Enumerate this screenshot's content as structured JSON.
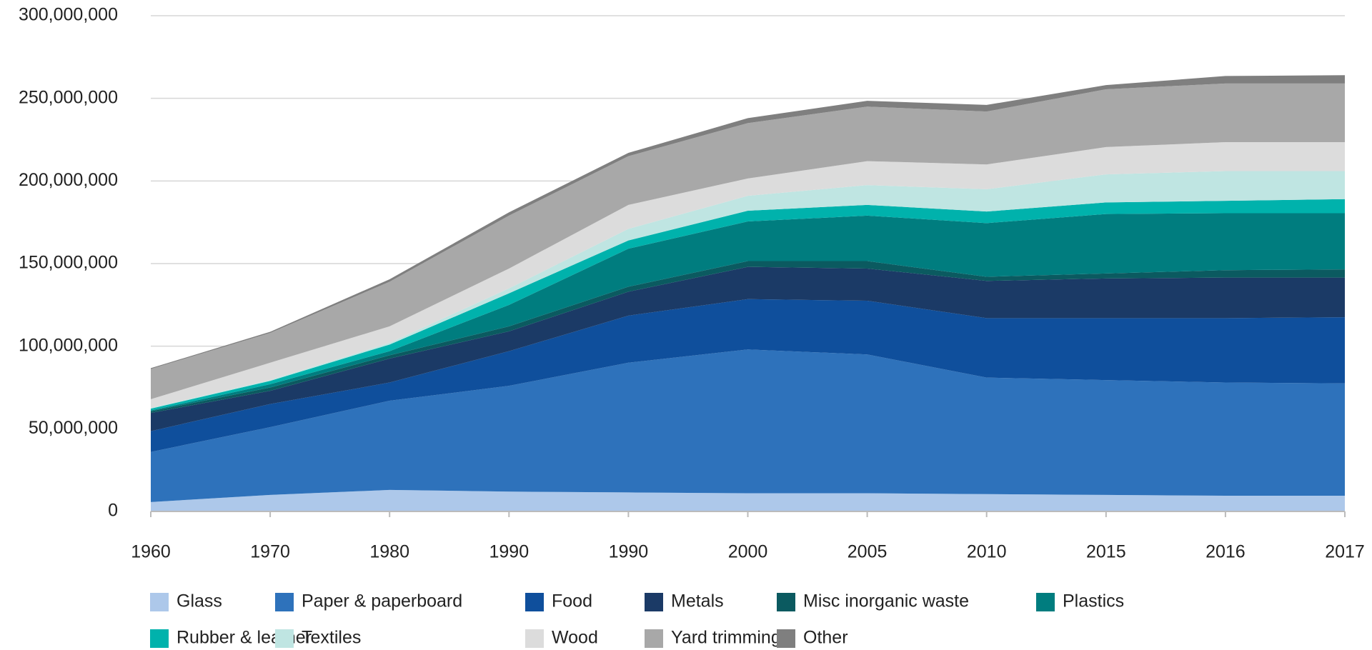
{
  "chart_data": {
    "type": "stacked_area",
    "categories": [
      "1960",
      "1970",
      "1980",
      "1990",
      "1990",
      "2000",
      "2005",
      "2010",
      "2015",
      "2016",
      "2017"
    ],
    "series": [
      {
        "name": "Glass",
        "color": "#adc8ea",
        "values": [
          5700000,
          10000000,
          13000000,
          12000000,
          11500000,
          11000000,
          11000000,
          10500000,
          10000000,
          9500000,
          9500000
        ]
      },
      {
        "name": "Paper & paperboard",
        "color": "#2e72bb",
        "values": [
          30300000,
          41000000,
          54000000,
          64000000,
          78500000,
          87000000,
          84000000,
          70500000,
          69500000,
          68500000,
          68000000
        ]
      },
      {
        "name": "Food",
        "color": "#0f4f9c",
        "values": [
          12600000,
          14000000,
          11000000,
          21000000,
          28500000,
          30500000,
          32500000,
          36000000,
          37500000,
          39000000,
          40000000
        ]
      },
      {
        "name": "Metals",
        "color": "#1b3a66",
        "values": [
          11000000,
          8000000,
          14500000,
          12000000,
          14500000,
          19500000,
          19500000,
          22500000,
          24000000,
          24500000,
          24000000
        ]
      },
      {
        "name": "Misc inorganic waste",
        "color": "#0b5a60",
        "values": [
          1000000,
          2000000,
          2000000,
          3000000,
          3000000,
          3500000,
          4500000,
          2500000,
          3000000,
          4500000,
          5000000
        ]
      },
      {
        "name": "Plastics",
        "color": "#007d7f",
        "values": [
          500000,
          2000000,
          2500000,
          13000000,
          23000000,
          24000000,
          27500000,
          32500000,
          36000000,
          34500000,
          34000000
        ]
      },
      {
        "name": "Rubber & leather",
        "color": "#00b2ac",
        "values": [
          1100000,
          2000000,
          4000000,
          7000000,
          5000000,
          6500000,
          6500000,
          7000000,
          7000000,
          7500000,
          8500000
        ]
      },
      {
        "name": "Textiles",
        "color": "#bfe5e2",
        "values": [
          500000,
          500000,
          1000000,
          3000000,
          7000000,
          9000000,
          12000000,
          13500000,
          17000000,
          18000000,
          17000000
        ]
      },
      {
        "name": "Wood",
        "color": "#dcdcdc",
        "values": [
          5200000,
          10500000,
          10000000,
          12000000,
          14500000,
          10500000,
          14500000,
          15000000,
          16500000,
          17500000,
          17500000
        ]
      },
      {
        "name": "Yard trimmings",
        "color": "#a8a8a8",
        "values": [
          18300000,
          18000000,
          27000000,
          32000000,
          29500000,
          33500000,
          33000000,
          32000000,
          35000000,
          35500000,
          35500000
        ]
      },
      {
        "name": "Other",
        "color": "#7f7f7f",
        "values": [
          500000,
          700000,
          1500000,
          2000000,
          2000000,
          3000000,
          3500000,
          4000000,
          2500000,
          4500000,
          5000000
        ]
      }
    ],
    "ylim": [
      0,
      300000000
    ],
    "yticks": [
      0,
      {
        "value": 50000000,
        "label": "50,000,000"
      },
      {
        "value": 100000000,
        "label": "100,000,000"
      },
      {
        "value": 150000000,
        "label": "150,000,000"
      },
      {
        "value": 200000000,
        "label": "200,000,000"
      },
      {
        "value": 250000000,
        "label": "250,000,000"
      },
      {
        "value": 300000000,
        "label": "300,000,000"
      }
    ],
    "grid": true,
    "legend": "bottom"
  }
}
